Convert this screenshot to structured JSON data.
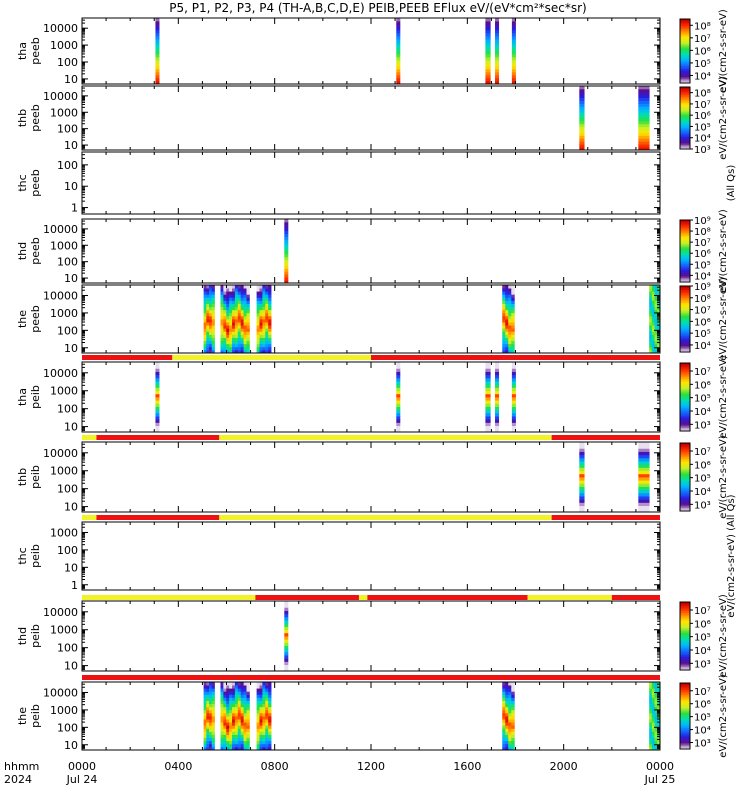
{
  "title": "P5, P1, P2, P3, P4 (TH-A,B,C,D,E) PEIB,PEEB EFlux eV/(eV*cm²*sec*sr)",
  "colors": {
    "flag_red": "#ee1111",
    "flag_yellow": "#f2f226",
    "rainbow": [
      "#e8e0f0",
      "#5a0e8c",
      "#2a1ce0",
      "#1468ff",
      "#00b6ff",
      "#00e0b0",
      "#28e03c",
      "#c8f028",
      "#ffe600",
      "#ff8c00",
      "#ff3000",
      "#c80000"
    ]
  },
  "chart_data": {
    "type": "heatmap",
    "title": "P5, P1, P2, P3, P4 (TH-A,B,C,D,E) PEIB,PEEB EFlux eV/(eV*cm²*sec*sr)",
    "x_axis": {
      "tick_labels": [
        "0000",
        "0400",
        "0800",
        "1200",
        "1600",
        "2000",
        "0000"
      ],
      "tick_hours": [
        0,
        4,
        8,
        12,
        16,
        20,
        24
      ],
      "date_labels": [
        "Jul 24",
        "Jul 25"
      ],
      "corner_labels": [
        "hhmm",
        "2024"
      ],
      "range_hours": [
        0,
        24
      ]
    },
    "y_scale": "log",
    "y_tick_labels": [
      "1",
      "10",
      "100",
      "1000",
      "10000"
    ],
    "panels": [
      {
        "id": "tha_peeb",
        "ylabel": [
          "tha",
          "peeb"
        ],
        "ymin": 5,
        "ymax": 40000,
        "yticks": [
          "10",
          "100",
          "1000",
          "10000"
        ],
        "colorbar": {
          "labels": [
            "10⁴",
            "10⁵",
            "10⁶",
            "10⁷",
            "10⁸"
          ],
          "min_exp": 3.4,
          "max_exp": 8.5,
          "title": "eV/(cm2-s-sr-eV)"
        },
        "bursts": [
          {
            "start": 3.05,
            "end": 3.2,
            "profile": "e"
          },
          {
            "start": 13.05,
            "end": 13.2,
            "profile": "e"
          },
          {
            "start": 16.75,
            "end": 16.95,
            "profile": "e"
          },
          {
            "start": 17.15,
            "end": 17.3,
            "profile": "e"
          },
          {
            "start": 17.85,
            "end": 18.0,
            "profile": "e"
          }
        ]
      },
      {
        "id": "thb_peeb",
        "ylabel": [
          "thb",
          "peeb"
        ],
        "ymin": 5,
        "ymax": 40000,
        "yticks": [
          "10",
          "100",
          "1000",
          "10000"
        ],
        "colorbar": {
          "labels": [
            "10³",
            "10⁴",
            "10⁵",
            "10⁶",
            "10⁷",
            "10⁸"
          ],
          "min_exp": 3.0,
          "max_exp": 8.5,
          "title": "eV/(cm2-s-sr-eV)"
        },
        "bursts": [
          {
            "start": 20.65,
            "end": 20.85,
            "profile": "e"
          },
          {
            "start": 23.1,
            "end": 23.55,
            "profile": "e"
          }
        ]
      },
      {
        "id": "thc_peeb",
        "ylabel": [
          "thc",
          "peeb"
        ],
        "ymin": 0.5,
        "ymax": 400,
        "yticks": [
          "1",
          "10",
          "100"
        ],
        "colorbar": null,
        "side_label": "(All Qs)",
        "bursts": []
      },
      {
        "id": "thd_peeb",
        "ylabel": [
          "thd",
          "peeb"
        ],
        "ymin": 5,
        "ymax": 40000,
        "yticks": [
          "10",
          "100",
          "1000",
          "10000"
        ],
        "colorbar": {
          "labels": [
            "10⁴",
            "10⁵",
            "10⁶",
            "10⁷",
            "10⁸",
            "10⁹"
          ],
          "min_exp": 3.4,
          "max_exp": 9.0,
          "title": "eV/(cm2-s-sr-eV)"
        },
        "bursts": [
          {
            "start": 8.4,
            "end": 8.55,
            "profile": "e"
          }
        ]
      },
      {
        "id": "the_peeb",
        "ylabel": [
          "the",
          "peeb"
        ],
        "ymin": 5,
        "ymax": 40000,
        "yticks": [
          "10",
          "100",
          "1000",
          "10000"
        ],
        "colorbar": {
          "labels": [
            "10⁴",
            "10⁵",
            "10⁶",
            "10⁷",
            "10⁸",
            "10⁹"
          ],
          "min_exp": 3.4,
          "max_exp": 9.0,
          "title": "eV/(cm2-s-sr-eV)"
        },
        "bursts": [
          {
            "start": 5.05,
            "end": 5.5,
            "profile": "broad"
          },
          {
            "start": 5.75,
            "end": 6.95,
            "profile": "broad"
          },
          {
            "start": 7.25,
            "end": 7.85,
            "profile": "broad"
          },
          {
            "start": 17.45,
            "end": 17.95,
            "profile": "broad"
          },
          {
            "start": 23.55,
            "end": 24.0,
            "profile": "green"
          }
        ],
        "flag_bar": [
          {
            "start": 0,
            "end": 3.75,
            "color": "red"
          },
          {
            "start": 3.75,
            "end": 12.0,
            "color": "yellow"
          },
          {
            "start": 12.0,
            "end": 24.0,
            "color": "red"
          }
        ]
      },
      {
        "id": "tha_peib",
        "ylabel": [
          "tha",
          "peib"
        ],
        "ymin": 5,
        "ymax": 40000,
        "yticks": [
          "10",
          "100",
          "1000",
          "10000"
        ],
        "colorbar": {
          "labels": [
            "10³",
            "10⁴",
            "10⁵",
            "10⁶",
            "10⁷"
          ],
          "min_exp": 2.5,
          "max_exp": 7.6,
          "title": "eV/(cm2-s-sr-eV)"
        },
        "bursts": [
          {
            "start": 3.05,
            "end": 3.2,
            "profile": "i"
          },
          {
            "start": 13.05,
            "end": 13.2,
            "profile": "i"
          },
          {
            "start": 16.75,
            "end": 16.95,
            "profile": "i"
          },
          {
            "start": 17.15,
            "end": 17.3,
            "profile": "i"
          },
          {
            "start": 17.85,
            "end": 18.0,
            "profile": "i"
          }
        ],
        "flag_bar": [
          {
            "start": 0,
            "end": 0.6,
            "color": "yellow"
          },
          {
            "start": 0.6,
            "end": 5.7,
            "color": "red"
          },
          {
            "start": 5.7,
            "end": 19.5,
            "color": "yellow"
          },
          {
            "start": 19.5,
            "end": 24.0,
            "color": "red"
          }
        ]
      },
      {
        "id": "thb_peib",
        "ylabel": [
          "thb",
          "peib"
        ],
        "ymin": 5,
        "ymax": 40000,
        "yticks": [
          "10",
          "100",
          "1000",
          "10000"
        ],
        "colorbar": {
          "labels": [
            "10³",
            "10⁴",
            "10⁵",
            "10⁶",
            "10⁷"
          ],
          "min_exp": 2.5,
          "max_exp": 7.6,
          "title": "eV/(cm2-s-sr-eV)"
        },
        "bursts": [
          {
            "start": 20.65,
            "end": 20.85,
            "profile": "i"
          },
          {
            "start": 23.1,
            "end": 23.55,
            "profile": "i"
          }
        ],
        "flag_bar": [
          {
            "start": 0,
            "end": 0.6,
            "color": "yellow"
          },
          {
            "start": 0.6,
            "end": 5.7,
            "color": "red"
          },
          {
            "start": 5.7,
            "end": 19.5,
            "color": "yellow"
          },
          {
            "start": 19.5,
            "end": 24.0,
            "color": "red"
          }
        ]
      },
      {
        "id": "thc_peib",
        "ylabel": [
          "thc",
          "peib"
        ],
        "ymin": 0.5,
        "ymax": 4000,
        "yticks": [
          "1",
          "10",
          "100",
          "1000"
        ],
        "colorbar": null,
        "side_label": "eV/(cm2-s-sr-eV) (All Qs)",
        "bursts": [],
        "flag_bar": [
          {
            "start": 0,
            "end": 7.2,
            "color": "yellow"
          },
          {
            "start": 7.2,
            "end": 11.5,
            "color": "red"
          },
          {
            "start": 11.5,
            "end": 11.85,
            "color": "yellow"
          },
          {
            "start": 11.85,
            "end": 18.5,
            "color": "red"
          },
          {
            "start": 18.5,
            "end": 22.0,
            "color": "yellow"
          },
          {
            "start": 22.0,
            "end": 24.0,
            "color": "red"
          }
        ]
      },
      {
        "id": "thd_peib",
        "ylabel": [
          "thd",
          "peib"
        ],
        "ymin": 5,
        "ymax": 40000,
        "yticks": [
          "10",
          "100",
          "1000",
          "10000"
        ],
        "colorbar": {
          "labels": [
            "10³",
            "10⁴",
            "10⁵",
            "10⁶",
            "10⁷"
          ],
          "min_exp": 2.5,
          "max_exp": 7.6,
          "title": "eV/(cm2-s-sr-eV)"
        },
        "bursts": [
          {
            "start": 8.4,
            "end": 8.55,
            "profile": "i"
          }
        ],
        "flag_bar": [
          {
            "start": 0,
            "end": 24.0,
            "color": "red"
          }
        ]
      },
      {
        "id": "the_peib",
        "ylabel": [
          "the",
          "peib"
        ],
        "ymin": 5,
        "ymax": 40000,
        "yticks": [
          "10",
          "100",
          "1000",
          "10000"
        ],
        "colorbar": {
          "labels": [
            "10³",
            "10⁴",
            "10⁵",
            "10⁶",
            "10⁷"
          ],
          "min_exp": 2.5,
          "max_exp": 7.6,
          "title": "eV/(cm2-s-sr-eV)"
        },
        "bursts": [
          {
            "start": 5.05,
            "end": 5.5,
            "profile": "broad"
          },
          {
            "start": 5.75,
            "end": 6.95,
            "profile": "broad"
          },
          {
            "start": 7.25,
            "end": 7.85,
            "profile": "broad"
          },
          {
            "start": 17.45,
            "end": 17.95,
            "profile": "broad"
          },
          {
            "start": 23.55,
            "end": 24.0,
            "profile": "green"
          }
        ]
      }
    ]
  }
}
